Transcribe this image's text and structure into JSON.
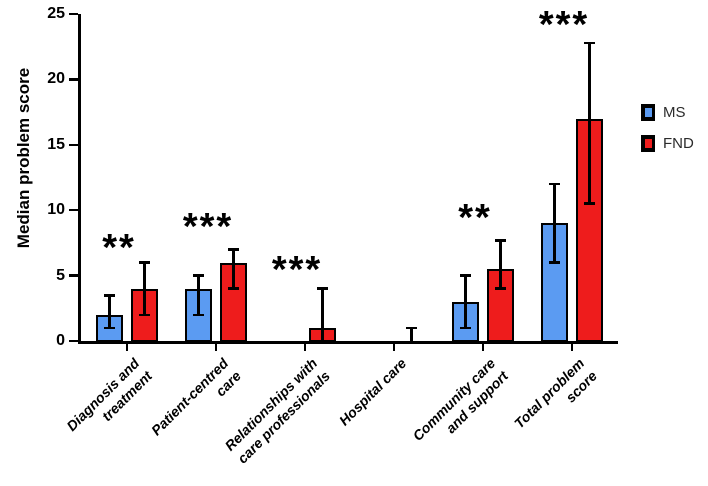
{
  "chart_data": {
    "type": "bar",
    "title": "",
    "ylabel": "Median problem score",
    "ylim": [
      0,
      25
    ],
    "yticks": [
      0,
      5,
      10,
      15,
      20,
      25
    ],
    "grid": false,
    "legend_position": "right",
    "categories": [
      {
        "lines": [
          "Diagnosis and",
          "treatment"
        ]
      },
      {
        "lines": [
          "Patient-centred",
          "care"
        ]
      },
      {
        "lines": [
          "Relationships with",
          "care professionals"
        ]
      },
      {
        "lines": [
          "Hospital care"
        ]
      },
      {
        "lines": [
          "Community care",
          "and support"
        ]
      },
      {
        "lines": [
          "Total problem",
          "score"
        ]
      }
    ],
    "series": [
      {
        "name": "MS",
        "color": "#5b9bf2",
        "values": [
          2,
          4,
          0,
          0,
          3,
          9
        ],
        "err_low": [
          1,
          2,
          0,
          0,
          1,
          6
        ],
        "err_high": [
          3.5,
          5,
          0,
          0,
          5,
          12
        ]
      },
      {
        "name": "FND",
        "color": "#ee1c1c",
        "values": [
          4,
          6,
          1,
          0,
          5.5,
          17
        ],
        "err_low": [
          2,
          4,
          0,
          0,
          4,
          10.5
        ],
        "err_high": [
          6,
          7,
          4,
          1,
          7.7,
          22.8
        ]
      }
    ],
    "significance": [
      {
        "label": "**",
        "y": 7.6
      },
      {
        "label": "***",
        "y": 9.2
      },
      {
        "label": "***",
        "y": 5.9
      },
      {
        "label": "",
        "y": 0
      },
      {
        "label": "**",
        "y": 9.9
      },
      {
        "label": "***",
        "y": 24.6
      }
    ],
    "axis_color": "#000000",
    "bar_border_color": "#000000"
  }
}
